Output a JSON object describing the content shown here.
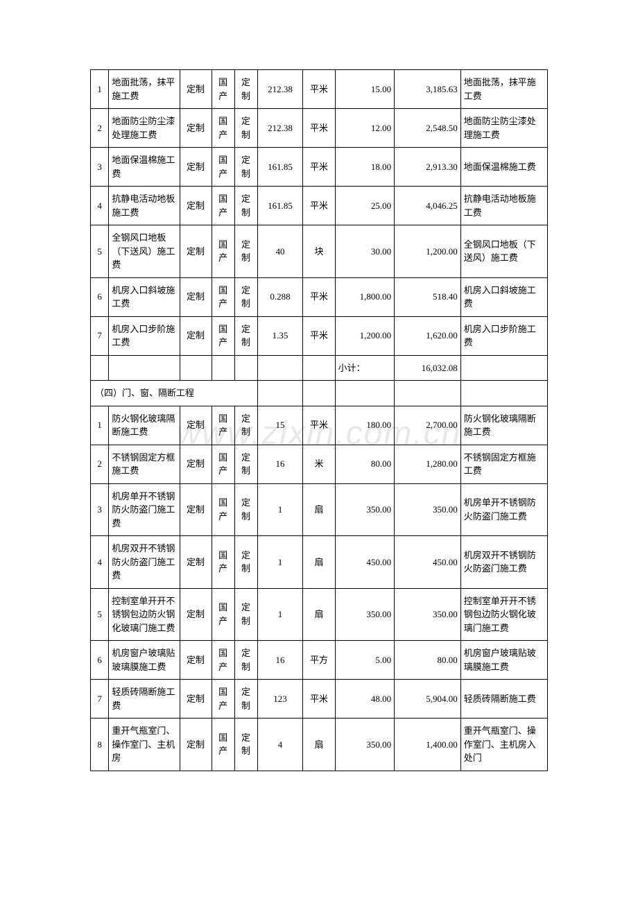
{
  "watermark": {
    "text": "www.zixin.com.cn"
  },
  "colors": {
    "background": "#ffffff",
    "border": "#000000",
    "text": "#000000",
    "watermark": "#e8e8e8"
  },
  "typography": {
    "body_font": "SimSun",
    "body_size": 13,
    "watermark_family": "Arial",
    "watermark_size": 48,
    "line_height": 1.5
  },
  "table": {
    "col_widths_pct": [
      4,
      15.5,
      7,
      5,
      5,
      10,
      7,
      13,
      14.5,
      19
    ],
    "col_keys": [
      "num",
      "name",
      "custom",
      "origin",
      "spec",
      "qty",
      "unit",
      "price",
      "total",
      "remark"
    ]
  },
  "section1": {
    "rows": [
      {
        "num": "1",
        "name": "地面批荡，抹平施工费",
        "custom": "定制",
        "origin": "国产",
        "spec": "定制",
        "qty": "212.38",
        "unit": "平米",
        "price": "15.00",
        "total": "3,185.63",
        "remark": "地面批荡，抹平施工费"
      },
      {
        "num": "2",
        "name": "地面防尘防尘漆处理施工费",
        "custom": "定制",
        "origin": "国产",
        "spec": "定制",
        "qty": "212.38",
        "unit": "平米",
        "price": "12.00",
        "total": "2,548.50",
        "remark": "地面防尘防尘漆处理施工费"
      },
      {
        "num": "3",
        "name": "地面保温棉施工费",
        "custom": "定制",
        "origin": "国产",
        "spec": "定制",
        "qty": "161.85",
        "unit": "平米",
        "price": "18.00",
        "total": "2,913.30",
        "remark": "地面保温棉施工费"
      },
      {
        "num": "4",
        "name": "抗静电活动地板施工费",
        "custom": "定制",
        "origin": "国产",
        "spec": "定制",
        "qty": "161.85",
        "unit": "平米",
        "price": "25.00",
        "total": "4,046.25",
        "remark": "抗静电活动地板施工费"
      },
      {
        "num": "5",
        "name": "全钢风口地板（下送风）施工费",
        "custom": "定制",
        "origin": "国产",
        "spec": "定制",
        "qty": "40",
        "unit": "块",
        "price": "30.00",
        "total": "1,200.00",
        "remark": "全钢风口地板（下送风）施工费"
      },
      {
        "num": "6",
        "name": "机房入口斜坡施工费",
        "custom": "定制",
        "origin": "国产",
        "spec": "定制",
        "qty": "0.288",
        "unit": "平米",
        "price": "1,800.00",
        "total": "518.40",
        "remark": "机房入口斜坡施工费"
      },
      {
        "num": "7",
        "name": "机房入口步阶施工费",
        "custom": "定制",
        "origin": "国产",
        "spec": "定制",
        "qty": "1.35",
        "unit": "平米",
        "price": "1,200.00",
        "total": "1,620.00",
        "remark": "机房入口步阶施工费"
      }
    ],
    "subtotal": {
      "label": "小计：",
      "value": "16,032.08"
    }
  },
  "section2": {
    "title": "（四）门、窗、隔断工程",
    "rows": [
      {
        "num": "1",
        "name": "防火钢化玻璃隔断施工费",
        "custom": "定制",
        "origin": "国产",
        "spec": "定制",
        "qty": "15",
        "unit": "平米",
        "price": "180.00",
        "total": "2,700.00",
        "remark": "防火钢化玻璃隔断施工费"
      },
      {
        "num": "2",
        "name": "不锈钢固定方框施工费",
        "custom": "定制",
        "origin": "国产",
        "spec": "定制",
        "qty": "16",
        "unit": "米",
        "price": "80.00",
        "total": "1,280.00",
        "remark": "不锈钢固定方框施工费"
      },
      {
        "num": "3",
        "name": "机房单开不锈钢防火防盗门施工费",
        "custom": "定制",
        "origin": "国产",
        "spec": "定制",
        "qty": "1",
        "unit": "扇",
        "price": "350.00",
        "total": "350.00",
        "remark": "机房单开不锈钢防火防盗门施工费"
      },
      {
        "num": "4",
        "name": "机房双开不锈钢防火防盗门施工费",
        "custom": "定制",
        "origin": "国产",
        "spec": "定制",
        "qty": "1",
        "unit": "扇",
        "price": "450.00",
        "total": "450.00",
        "remark": "机房双开不锈钢防火防盗门施工费"
      },
      {
        "num": "5",
        "name": "控制室单开开不锈钢包边防火钢化玻璃门施工费",
        "custom": "定制",
        "origin": "国产",
        "spec": "定制",
        "qty": "1",
        "unit": "扇",
        "price": "350.00",
        "total": "350.00",
        "remark": "控制室单开开不锈钢包边防火钢化玻璃门施工费"
      },
      {
        "num": "6",
        "name": "机房窗户玻璃贴玻璃膜施工费",
        "custom": "定制",
        "origin": "国产",
        "spec": "定制",
        "qty": "16",
        "unit": "平方",
        "price": "5.00",
        "total": "80.00",
        "remark": "机房窗户玻璃贴玻璃膜施工费"
      },
      {
        "num": "7",
        "name": "轻质砖隔断施工费",
        "custom": "定制",
        "origin": "国产",
        "spec": "定制",
        "qty": "123",
        "unit": "平米",
        "price": "48.00",
        "total": "5,904.00",
        "remark": "轻质砖隔断施工费"
      },
      {
        "num": "8",
        "name": "重开气瓶室门、操作室门、主机房",
        "custom": "定制",
        "origin": "国产",
        "spec": "定制",
        "qty": "4",
        "unit": "扇",
        "price": "350.00",
        "total": "1,400.00",
        "remark": "重开气瓶室门、操作室门、主机房入处门"
      }
    ]
  }
}
